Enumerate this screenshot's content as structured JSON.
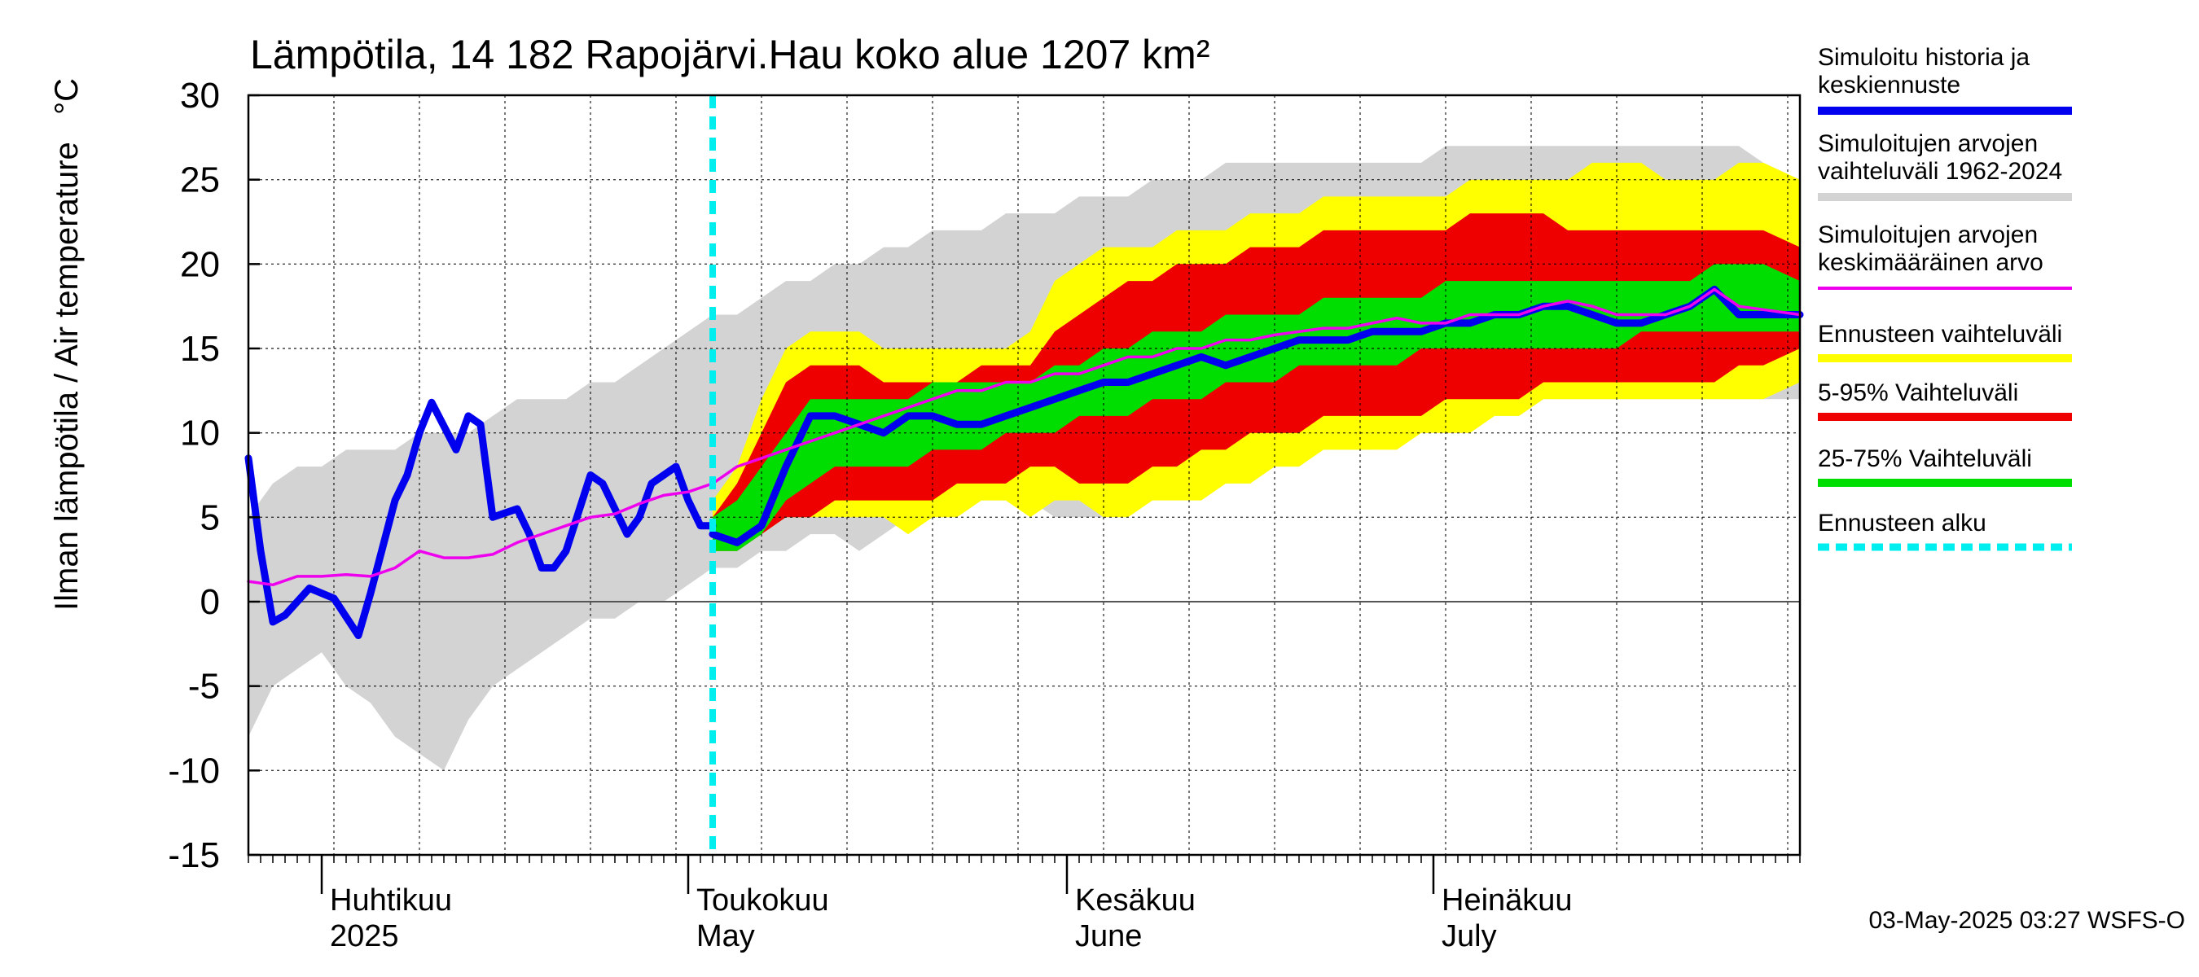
{
  "chart_data": {
    "type": "area",
    "title": "Lämpötila, 14 182 Rapojärvi.Hau koko alue 1207 km²",
    "ylabel": "Ilman lämpötila / Air temperature   °C",
    "ylim": [
      -15,
      30
    ],
    "xlim": [
      "2025-03-26",
      "2025-07-31"
    ],
    "yticks": [
      -15,
      -10,
      -5,
      0,
      5,
      10,
      15,
      20,
      25,
      30
    ],
    "ytick_labels": [
      "-15",
      "-10",
      "-5",
      "0",
      "5",
      "10",
      "15",
      "20",
      "25",
      "30"
    ],
    "month_labels": [
      {
        "date": "2025-04-01",
        "line1": "Huhtikuu",
        "line2": "2025"
      },
      {
        "date": "2025-05-01",
        "line1": "Toukokuu",
        "line2": "May"
      },
      {
        "date": "2025-06-01",
        "line1": "Kesäkuu",
        "line2": "June"
      },
      {
        "date": "2025-07-01",
        "line1": "Heinäkuu",
        "line2": "July"
      }
    ],
    "month_boundaries": [
      "2025-04-01",
      "2025-05-01",
      "2025-06-01",
      "2025-07-01"
    ],
    "forecast_start": "2025-05-03",
    "timestamp": "03-May-2025 03:27 WSFS-O",
    "grid": true,
    "legend_position": "right",
    "colors": {
      "history": "#0000ee",
      "range_hist": "#d3d3d3",
      "mean": "#ee00ee",
      "forecast_range": "#ffff00",
      "p5_95": "#ee0000",
      "p25_75": "#00dd00",
      "forecast_start": "#00eeee"
    },
    "legend": [
      {
        "key": "history",
        "line1": "Simuloitu historia ja",
        "line2": "keskiennuste",
        "color": "#0000ee",
        "style": "solid"
      },
      {
        "key": "range_hist",
        "line1": "Simuloitujen arvojen",
        "line2": "vaihteluväli 1962-2024",
        "color": "#d3d3d3",
        "style": "solid"
      },
      {
        "key": "mean",
        "line1": "Simuloitujen arvojen",
        "line2": "keskimääräinen arvo",
        "color": "#ee00ee",
        "style": "thin"
      },
      {
        "key": "forecast_range",
        "line1": "Ennusteen vaihteluväli",
        "line2": "",
        "color": "#ffff00",
        "style": "solid"
      },
      {
        "key": "p5_95",
        "line1": "5-95% Vaihteluväli",
        "line2": "",
        "color": "#ee0000",
        "style": "solid"
      },
      {
        "key": "p25_75",
        "line1": "25-75% Vaihteluväli",
        "line2": "",
        "color": "#00dd00",
        "style": "solid"
      },
      {
        "key": "forecast_start",
        "line1": "Ennusteen alku",
        "line2": "",
        "color": "#00eeee",
        "style": "dashed"
      }
    ],
    "series": {
      "hist_range": {
        "x": [
          "2025-03-26",
          "2025-03-28",
          "2025-03-30",
          "2025-04-01",
          "2025-04-03",
          "2025-04-05",
          "2025-04-07",
          "2025-04-09",
          "2025-04-11",
          "2025-04-13",
          "2025-04-15",
          "2025-04-17",
          "2025-04-19",
          "2025-04-21",
          "2025-04-23",
          "2025-04-25",
          "2025-04-27",
          "2025-04-29",
          "2025-05-01",
          "2025-05-03",
          "2025-05-05",
          "2025-05-07",
          "2025-05-09",
          "2025-05-11",
          "2025-05-13",
          "2025-05-15",
          "2025-05-17",
          "2025-05-19",
          "2025-05-21",
          "2025-05-23",
          "2025-05-25",
          "2025-05-27",
          "2025-05-29",
          "2025-05-31",
          "2025-06-02",
          "2025-06-04",
          "2025-06-06",
          "2025-06-08",
          "2025-06-10",
          "2025-06-12",
          "2025-06-14",
          "2025-06-16",
          "2025-06-18",
          "2025-06-20",
          "2025-06-22",
          "2025-06-24",
          "2025-06-26",
          "2025-06-28",
          "2025-06-30",
          "2025-07-02",
          "2025-07-04",
          "2025-07-06",
          "2025-07-08",
          "2025-07-10",
          "2025-07-12",
          "2025-07-14",
          "2025-07-16",
          "2025-07-18",
          "2025-07-20",
          "2025-07-22",
          "2025-07-24",
          "2025-07-26",
          "2025-07-28",
          "2025-07-31"
        ],
        "low": [
          -8,
          -5,
          -4,
          -3,
          -5,
          -6,
          -8,
          -9,
          -10,
          -7,
          -5,
          -4,
          -3,
          -2,
          -1,
          -1,
          0,
          0,
          1,
          2,
          2,
          3,
          3,
          4,
          4,
          3,
          4,
          5,
          5,
          5,
          6,
          6,
          6,
          5,
          5,
          5,
          6,
          6,
          7,
          7,
          7,
          8,
          8,
          9,
          9,
          9,
          9,
          10,
          10,
          11,
          11,
          11,
          11,
          12,
          12,
          12,
          12,
          12,
          12,
          12,
          12,
          12,
          12,
          12
        ],
        "high": [
          5,
          7,
          8,
          8,
          9,
          9,
          9,
          10,
          10,
          10,
          11,
          12,
          12,
          12,
          13,
          13,
          14,
          15,
          16,
          17,
          17,
          18,
          19,
          19,
          20,
          20,
          21,
          21,
          22,
          22,
          22,
          23,
          23,
          23,
          24,
          24,
          24,
          25,
          25,
          25,
          26,
          26,
          26,
          26,
          26,
          26,
          26,
          26,
          26,
          27,
          27,
          27,
          27,
          27,
          27,
          27,
          27,
          27,
          27,
          27,
          27,
          27,
          26,
          25
        ]
      },
      "forecast_range": {
        "x": [
          "2025-05-03",
          "2025-05-05",
          "2025-05-07",
          "2025-05-09",
          "2025-05-11",
          "2025-05-13",
          "2025-05-15",
          "2025-05-17",
          "2025-05-19",
          "2025-05-21",
          "2025-05-23",
          "2025-05-25",
          "2025-05-27",
          "2025-05-29",
          "2025-05-31",
          "2025-06-02",
          "2025-06-04",
          "2025-06-06",
          "2025-06-08",
          "2025-06-10",
          "2025-06-12",
          "2025-06-14",
          "2025-06-16",
          "2025-06-18",
          "2025-06-20",
          "2025-06-22",
          "2025-06-24",
          "2025-06-26",
          "2025-06-28",
          "2025-06-30",
          "2025-07-02",
          "2025-07-04",
          "2025-07-06",
          "2025-07-08",
          "2025-07-10",
          "2025-07-12",
          "2025-07-14",
          "2025-07-16",
          "2025-07-18",
          "2025-07-20",
          "2025-07-22",
          "2025-07-24",
          "2025-07-26",
          "2025-07-28",
          "2025-07-31"
        ],
        "low": [
          3,
          3,
          4,
          5,
          5,
          5,
          5,
          5,
          4,
          5,
          5,
          6,
          6,
          5,
          6,
          6,
          5,
          5,
          6,
          6,
          6,
          7,
          7,
          8,
          8,
          9,
          9,
          9,
          9,
          10,
          10,
          10,
          11,
          11,
          12,
          12,
          12,
          12,
          12,
          12,
          12,
          12,
          12,
          12,
          13
        ],
        "high": [
          6,
          8,
          12,
          15,
          16,
          16,
          16,
          15,
          15,
          15,
          15,
          15,
          15,
          16,
          19,
          20,
          21,
          21,
          21,
          22,
          22,
          22,
          23,
          23,
          23,
          24,
          24,
          24,
          24,
          24,
          24,
          25,
          25,
          25,
          25,
          25,
          26,
          26,
          26,
          25,
          25,
          25,
          26,
          26,
          25
        ]
      },
      "p5_95": {
        "x": [
          "2025-05-03",
          "2025-05-05",
          "2025-05-07",
          "2025-05-09",
          "2025-05-11",
          "2025-05-13",
          "2025-05-15",
          "2025-05-17",
          "2025-05-19",
          "2025-05-21",
          "2025-05-23",
          "2025-05-25",
          "2025-05-27",
          "2025-05-29",
          "2025-05-31",
          "2025-06-02",
          "2025-06-04",
          "2025-06-06",
          "2025-06-08",
          "2025-06-10",
          "2025-06-12",
          "2025-06-14",
          "2025-06-16",
          "2025-06-18",
          "2025-06-20",
          "2025-06-22",
          "2025-06-24",
          "2025-06-26",
          "2025-06-28",
          "2025-06-30",
          "2025-07-02",
          "2025-07-04",
          "2025-07-06",
          "2025-07-08",
          "2025-07-10",
          "2025-07-12",
          "2025-07-14",
          "2025-07-16",
          "2025-07-18",
          "2025-07-20",
          "2025-07-22",
          "2025-07-24",
          "2025-07-26",
          "2025-07-28",
          "2025-07-31"
        ],
        "low": [
          3,
          3,
          4,
          5,
          5,
          6,
          6,
          6,
          6,
          6,
          7,
          7,
          7,
          8,
          8,
          7,
          7,
          7,
          8,
          8,
          9,
          9,
          10,
          10,
          10,
          11,
          11,
          11,
          11,
          11,
          12,
          12,
          12,
          12,
          13,
          13,
          13,
          13,
          13,
          13,
          13,
          13,
          14,
          14,
          15
        ],
        "high": [
          5,
          7,
          10,
          13,
          14,
          14,
          14,
          13,
          13,
          13,
          13,
          14,
          14,
          14,
          16,
          17,
          18,
          19,
          19,
          20,
          20,
          20,
          21,
          21,
          21,
          22,
          22,
          22,
          22,
          22,
          22,
          23,
          23,
          23,
          23,
          22,
          22,
          22,
          22,
          22,
          22,
          22,
          22,
          22,
          21
        ]
      },
      "p25_75": {
        "x": [
          "2025-05-03",
          "2025-05-05",
          "2025-05-07",
          "2025-05-09",
          "2025-05-11",
          "2025-05-13",
          "2025-05-15",
          "2025-05-17",
          "2025-05-19",
          "2025-05-21",
          "2025-05-23",
          "2025-05-25",
          "2025-05-27",
          "2025-05-29",
          "2025-05-31",
          "2025-06-02",
          "2025-06-04",
          "2025-06-06",
          "2025-06-08",
          "2025-06-10",
          "2025-06-12",
          "2025-06-14",
          "2025-06-16",
          "2025-06-18",
          "2025-06-20",
          "2025-06-22",
          "2025-06-24",
          "2025-06-26",
          "2025-06-28",
          "2025-06-30",
          "2025-07-02",
          "2025-07-04",
          "2025-07-06",
          "2025-07-08",
          "2025-07-10",
          "2025-07-12",
          "2025-07-14",
          "2025-07-16",
          "2025-07-18",
          "2025-07-20",
          "2025-07-22",
          "2025-07-24",
          "2025-07-26",
          "2025-07-28",
          "2025-07-31"
        ],
        "low": [
          3,
          3,
          4,
          6,
          7,
          8,
          8,
          8,
          8,
          9,
          9,
          9,
          10,
          10,
          10,
          11,
          11,
          11,
          12,
          12,
          12,
          13,
          13,
          13,
          14,
          14,
          14,
          14,
          14,
          15,
          15,
          15,
          15,
          15,
          15,
          15,
          15,
          15,
          16,
          16,
          16,
          16,
          16,
          16,
          16
        ],
        "high": [
          5,
          6,
          8,
          10,
          12,
          12,
          12,
          12,
          12,
          13,
          13,
          13,
          13,
          13,
          14,
          14,
          15,
          15,
          16,
          16,
          16,
          17,
          17,
          17,
          17,
          18,
          18,
          18,
          18,
          18,
          19,
          19,
          19,
          19,
          19,
          19,
          19,
          19,
          19,
          19,
          19,
          20,
          20,
          20,
          19
        ]
      },
      "mean": {
        "x": [
          "2025-03-26",
          "2025-03-28",
          "2025-03-30",
          "2025-04-01",
          "2025-04-03",
          "2025-04-05",
          "2025-04-07",
          "2025-04-09",
          "2025-04-11",
          "2025-04-13",
          "2025-04-15",
          "2025-04-17",
          "2025-04-19",
          "2025-04-21",
          "2025-04-23",
          "2025-04-25",
          "2025-04-27",
          "2025-04-29",
          "2025-05-01",
          "2025-05-03",
          "2025-05-05",
          "2025-05-07",
          "2025-05-09",
          "2025-05-11",
          "2025-05-13",
          "2025-05-15",
          "2025-05-17",
          "2025-05-19",
          "2025-05-21",
          "2025-05-23",
          "2025-05-25",
          "2025-05-27",
          "2025-05-29",
          "2025-05-31",
          "2025-06-02",
          "2025-06-04",
          "2025-06-06",
          "2025-06-08",
          "2025-06-10",
          "2025-06-12",
          "2025-06-14",
          "2025-06-16",
          "2025-06-18",
          "2025-06-20",
          "2025-06-22",
          "2025-06-24",
          "2025-06-26",
          "2025-06-28",
          "2025-06-30",
          "2025-07-02",
          "2025-07-04",
          "2025-07-06",
          "2025-07-08",
          "2025-07-10",
          "2025-07-12",
          "2025-07-14",
          "2025-07-16",
          "2025-07-18",
          "2025-07-20",
          "2025-07-22",
          "2025-07-24",
          "2025-07-26",
          "2025-07-28",
          "2025-07-31"
        ],
        "values": [
          1.2,
          1.0,
          1.5,
          1.5,
          1.6,
          1.5,
          2.0,
          3.0,
          2.6,
          2.6,
          2.8,
          3.5,
          4.0,
          4.5,
          5.0,
          5.2,
          5.8,
          6.3,
          6.5,
          7.0,
          8.0,
          8.5,
          9.0,
          9.5,
          10.0,
          10.5,
          11.0,
          11.5,
          12.0,
          12.5,
          12.5,
          13.0,
          13.0,
          13.5,
          13.5,
          14.0,
          14.5,
          14.5,
          15.0,
          15.0,
          15.5,
          15.5,
          15.8,
          16.0,
          16.2,
          16.2,
          16.5,
          16.8,
          16.5,
          16.5,
          17.0,
          17.0,
          17.0,
          17.5,
          17.8,
          17.5,
          17.0,
          17.0,
          17.0,
          17.5,
          18.5,
          17.5,
          17.3,
          17.0
        ]
      },
      "history": {
        "x": [
          "2025-03-26",
          "2025-03-27",
          "2025-03-28",
          "2025-03-29",
          "2025-03-31",
          "2025-04-02",
          "2025-04-04",
          "2025-04-05",
          "2025-04-07",
          "2025-04-08",
          "2025-04-09",
          "2025-04-10",
          "2025-04-12",
          "2025-04-13",
          "2025-04-14",
          "2025-04-15",
          "2025-04-17",
          "2025-04-18",
          "2025-04-19",
          "2025-04-20",
          "2025-04-21",
          "2025-04-23",
          "2025-04-24",
          "2025-04-26",
          "2025-04-27",
          "2025-04-28",
          "2025-04-29",
          "2025-04-30",
          "2025-05-01",
          "2025-05-02",
          "2025-05-03"
        ],
        "values": [
          8.5,
          3.0,
          -1.2,
          -0.8,
          0.8,
          0.2,
          -2.0,
          0.5,
          6.0,
          7.5,
          10.0,
          11.8,
          9.0,
          11.0,
          10.5,
          5.0,
          5.5,
          4.0,
          2.0,
          2.0,
          3.0,
          7.5,
          7.0,
          4.0,
          5.0,
          7.0,
          7.5,
          8.0,
          6.0,
          4.5,
          4.5
        ]
      },
      "forecast_median": {
        "x": [
          "2025-05-03",
          "2025-05-05",
          "2025-05-07",
          "2025-05-09",
          "2025-05-11",
          "2025-05-13",
          "2025-05-15",
          "2025-05-17",
          "2025-05-19",
          "2025-05-21",
          "2025-05-23",
          "2025-05-25",
          "2025-05-27",
          "2025-05-29",
          "2025-05-31",
          "2025-06-02",
          "2025-06-04",
          "2025-06-06",
          "2025-06-08",
          "2025-06-10",
          "2025-06-12",
          "2025-06-14",
          "2025-06-16",
          "2025-06-18",
          "2025-06-20",
          "2025-06-22",
          "2025-06-24",
          "2025-06-26",
          "2025-06-28",
          "2025-06-30",
          "2025-07-02",
          "2025-07-04",
          "2025-07-06",
          "2025-07-08",
          "2025-07-10",
          "2025-07-12",
          "2025-07-14",
          "2025-07-16",
          "2025-07-18",
          "2025-07-20",
          "2025-07-22",
          "2025-07-24",
          "2025-07-26",
          "2025-07-28",
          "2025-07-31"
        ],
        "values": [
          4.0,
          3.5,
          4.5,
          8.0,
          11.0,
          11.0,
          10.5,
          10.0,
          11.0,
          11.0,
          10.5,
          10.5,
          11.0,
          11.5,
          12.0,
          12.5,
          13.0,
          13.0,
          13.5,
          14.0,
          14.5,
          14.0,
          14.5,
          15.0,
          15.5,
          15.5,
          15.5,
          16.0,
          16.0,
          16.0,
          16.5,
          16.5,
          17.0,
          17.0,
          17.5,
          17.5,
          17.0,
          16.5,
          16.5,
          17.0,
          17.5,
          18.5,
          17.0,
          17.0,
          17.0
        ]
      }
    }
  }
}
